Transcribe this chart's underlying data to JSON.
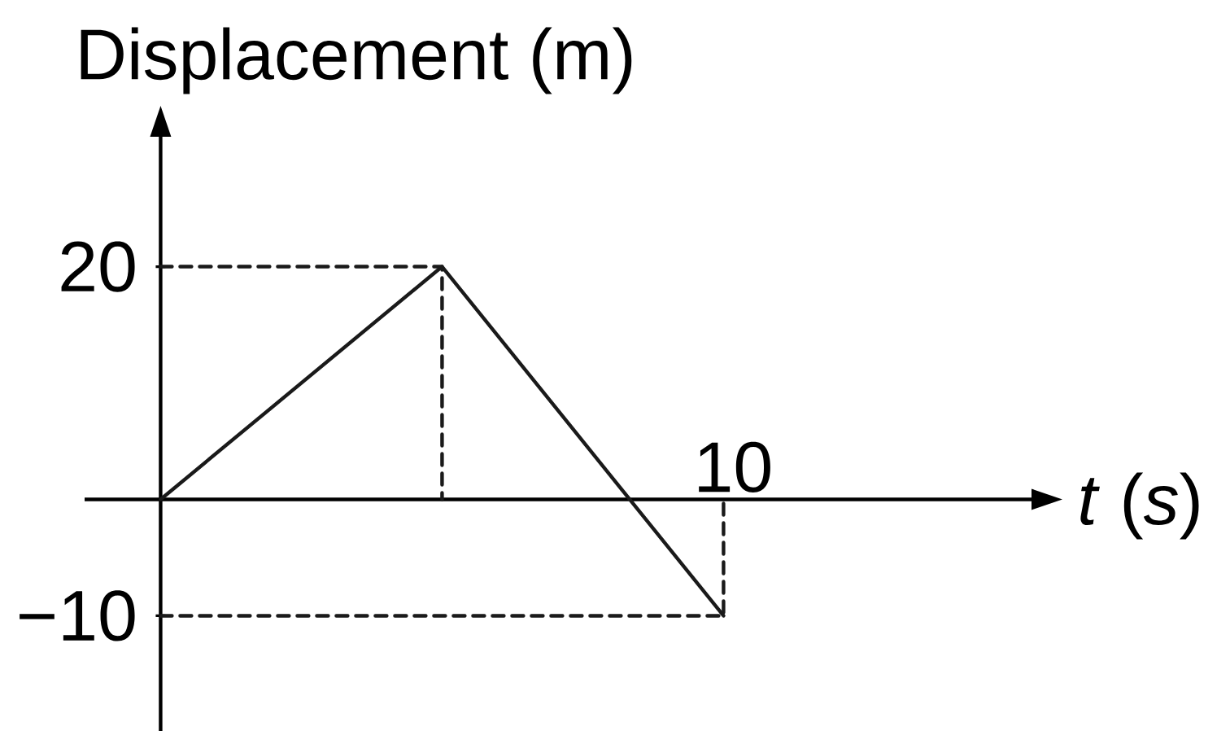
{
  "chart_data": {
    "type": "line",
    "xlabel": "*t* (*s*)",
    "ylabel": "Displacement (m)",
    "categories": [
      null,
      null,
      "10"
    ],
    "ylim": [
      -19.9,
      31.3
    ],
    "yticks": [
      {
        "value": -10,
        "label": "−10"
      },
      {
        "value": 20,
        "label": "20"
      }
    ],
    "series": [
      {
        "values": [
          0,
          20,
          -10
        ],
        "color": "#1a1a1a",
        "line_style": "solid"
      },
      {
        "type": "step",
        "values": [
          20,
          0,
          null
        ],
        "color": "#1a1a1a",
        "line_style": "dashed"
      },
      {
        "type": "step",
        "values": [
          -10,
          -10,
          0
        ],
        "color": "#1a1a1a",
        "line_style": "dashed"
      }
    ]
  }
}
